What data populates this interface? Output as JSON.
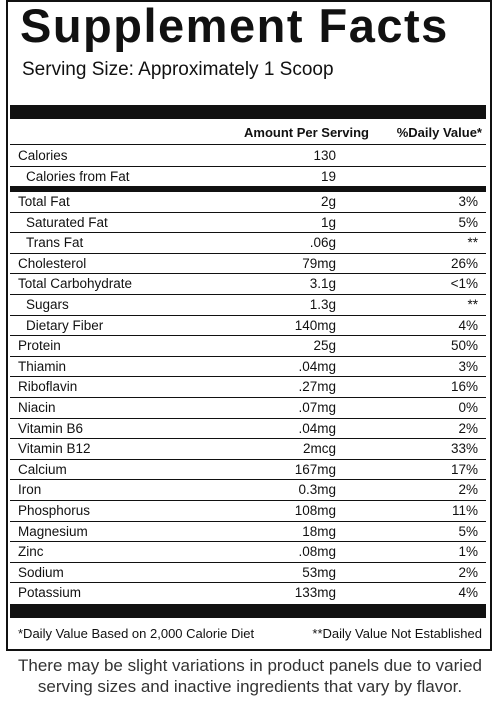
{
  "title": "Supplement Facts",
  "serving_size": "Serving Size: Approximately 1 Scoop",
  "headers": {
    "amount": "Amount Per Serving",
    "daily_value": "%Daily Value*"
  },
  "calorie_rows": [
    {
      "name": "Calories",
      "amount": "130",
      "dv": "",
      "indent": false
    },
    {
      "name": "Calories from Fat",
      "amount": "19",
      "dv": "",
      "indent": true
    }
  ],
  "nutrient_rows": [
    {
      "name": "Total Fat",
      "amount": "2g",
      "dv": "3%",
      "indent": false
    },
    {
      "name": "Saturated Fat",
      "amount": "1g",
      "dv": "5%",
      "indent": true
    },
    {
      "name": "Trans Fat",
      "amount": ".06g",
      "dv": "**",
      "indent": true
    },
    {
      "name": "Cholesterol",
      "amount": "79mg",
      "dv": "26%",
      "indent": false
    },
    {
      "name": "Total Carbohydrate",
      "amount": "3.1g",
      "dv": "<1%",
      "indent": false
    },
    {
      "name": "Sugars",
      "amount": "1.3g",
      "dv": "**",
      "indent": true
    },
    {
      "name": "Dietary Fiber",
      "amount": "140mg",
      "dv": "4%",
      "indent": true
    },
    {
      "name": "Protein",
      "amount": "25g",
      "dv": "50%",
      "indent": false
    },
    {
      "name": "Thiamin",
      "amount": ".04mg",
      "dv": "3%",
      "indent": false
    },
    {
      "name": "Riboflavin",
      "amount": ".27mg",
      "dv": "16%",
      "indent": false
    },
    {
      "name": "Niacin",
      "amount": ".07mg",
      "dv": "0%",
      "indent": false
    },
    {
      "name": "Vitamin B6",
      "amount": ".04mg",
      "dv": "2%",
      "indent": false
    },
    {
      "name": "Vitamin B12",
      "amount": "2mcg",
      "dv": "33%",
      "indent": false
    },
    {
      "name": "Calcium",
      "amount": "167mg",
      "dv": "17%",
      "indent": false
    },
    {
      "name": "Iron",
      "amount": "0.3mg",
      "dv": "2%",
      "indent": false
    },
    {
      "name": "Phosphorus",
      "amount": "108mg",
      "dv": "11%",
      "indent": false
    },
    {
      "name": "Magnesium",
      "amount": "18mg",
      "dv": "5%",
      "indent": false
    },
    {
      "name": "Zinc",
      "amount": ".08mg",
      "dv": "1%",
      "indent": false
    },
    {
      "name": "Sodium",
      "amount": "53mg",
      "dv": "2%",
      "indent": false
    },
    {
      "name": "Potassium",
      "amount": "133mg",
      "dv": "4%",
      "indent": false
    }
  ],
  "footnotes": {
    "daily_value_basis": "*Daily Value Based on 2,000 Calorie Diet",
    "not_established": "**Daily Value Not Established"
  },
  "disclaimer": {
    "line1": "There may be slight variations in product panels due to varied",
    "line2": "serving sizes and inactive ingredients that vary by flavor."
  }
}
